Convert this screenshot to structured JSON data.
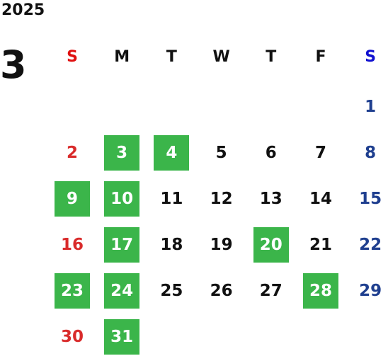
{
  "header": {
    "year": "2025",
    "month": "3"
  },
  "weekdays": [
    "S",
    "M",
    "T",
    "W",
    "T",
    "F",
    "S"
  ],
  "weeks": [
    [
      null,
      null,
      null,
      null,
      null,
      null,
      {
        "day": 1,
        "marked": false
      }
    ],
    [
      {
        "day": 2,
        "marked": false
      },
      {
        "day": 3,
        "marked": true
      },
      {
        "day": 4,
        "marked": true
      },
      {
        "day": 5,
        "marked": false
      },
      {
        "day": 6,
        "marked": false
      },
      {
        "day": 7,
        "marked": false
      },
      {
        "day": 8,
        "marked": false
      }
    ],
    [
      {
        "day": 9,
        "marked": true
      },
      {
        "day": 10,
        "marked": true
      },
      {
        "day": 11,
        "marked": false
      },
      {
        "day": 12,
        "marked": false
      },
      {
        "day": 13,
        "marked": false
      },
      {
        "day": 14,
        "marked": false
      },
      {
        "day": 15,
        "marked": false
      }
    ],
    [
      {
        "day": 16,
        "marked": false
      },
      {
        "day": 17,
        "marked": true
      },
      {
        "day": 18,
        "marked": false
      },
      {
        "day": 19,
        "marked": false
      },
      {
        "day": 20,
        "marked": true
      },
      {
        "day": 21,
        "marked": false
      },
      {
        "day": 22,
        "marked": false
      }
    ],
    [
      {
        "day": 23,
        "marked": true
      },
      {
        "day": 24,
        "marked": true
      },
      {
        "day": 25,
        "marked": false
      },
      {
        "day": 26,
        "marked": false
      },
      {
        "day": 27,
        "marked": false
      },
      {
        "day": 28,
        "marked": true
      },
      {
        "day": 29,
        "marked": false
      }
    ],
    [
      {
        "day": 30,
        "marked": false
      },
      {
        "day": 31,
        "marked": true
      },
      null,
      null,
      null,
      null,
      null
    ]
  ]
}
